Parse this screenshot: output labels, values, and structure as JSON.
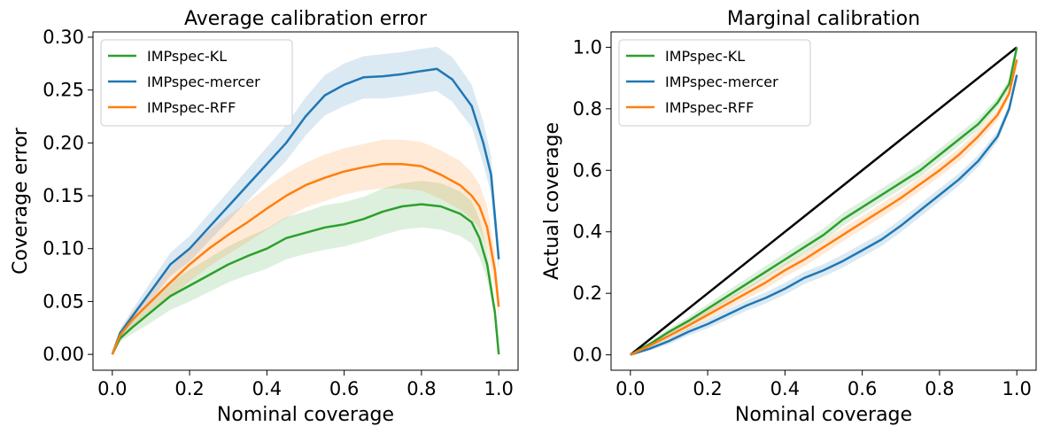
{
  "chart_data": [
    {
      "type": "line",
      "title": "Average calibration error",
      "xlabel": "Nominal coverage",
      "ylabel": "Coverage error",
      "xlim": [
        -0.05,
        1.05
      ],
      "ylim": [
        -0.015,
        0.305
      ],
      "xticks": [
        0.0,
        0.2,
        0.4,
        0.6,
        0.8,
        1.0
      ],
      "xtick_labels": [
        "0.0",
        "0.2",
        "0.4",
        "0.6",
        "0.8",
        "1.0"
      ],
      "yticks": [
        0.0,
        0.05,
        0.1,
        0.15,
        0.2,
        0.25,
        0.3
      ],
      "ytick_labels": [
        "0.00",
        "0.05",
        "0.10",
        "0.15",
        "0.20",
        "0.25",
        "0.30"
      ],
      "legend": "top-left",
      "grid": false,
      "series": [
        {
          "name": "IMPspec-KL",
          "color": "#2ca02c",
          "x": [
            0.0,
            0.02,
            0.05,
            0.1,
            0.15,
            0.2,
            0.25,
            0.3,
            0.35,
            0.4,
            0.45,
            0.5,
            0.55,
            0.6,
            0.65,
            0.7,
            0.75,
            0.8,
            0.85,
            0.9,
            0.93,
            0.95,
            0.97,
            0.99,
            1.0
          ],
          "y": [
            0.0,
            0.015,
            0.025,
            0.04,
            0.055,
            0.065,
            0.075,
            0.085,
            0.093,
            0.1,
            0.11,
            0.115,
            0.12,
            0.123,
            0.128,
            0.135,
            0.14,
            0.142,
            0.14,
            0.133,
            0.125,
            0.11,
            0.085,
            0.04,
            0.0
          ],
          "band_halfwidth": [
            0.0,
            0.003,
            0.006,
            0.01,
            0.013,
            0.015,
            0.016,
            0.017,
            0.018,
            0.019,
            0.02,
            0.02,
            0.021,
            0.021,
            0.021,
            0.022,
            0.022,
            0.022,
            0.022,
            0.021,
            0.02,
            0.018,
            0.014,
            0.006,
            0.0
          ]
        },
        {
          "name": "IMPspec-mercer",
          "color": "#1f77b4",
          "x": [
            0.0,
            0.02,
            0.05,
            0.1,
            0.15,
            0.2,
            0.25,
            0.3,
            0.35,
            0.4,
            0.45,
            0.5,
            0.55,
            0.6,
            0.65,
            0.7,
            0.75,
            0.8,
            0.84,
            0.88,
            0.9,
            0.93,
            0.96,
            0.98,
            1.0
          ],
          "y": [
            0.0,
            0.02,
            0.035,
            0.06,
            0.085,
            0.1,
            0.12,
            0.14,
            0.16,
            0.18,
            0.2,
            0.225,
            0.245,
            0.255,
            0.262,
            0.263,
            0.265,
            0.268,
            0.27,
            0.26,
            0.25,
            0.235,
            0.2,
            0.17,
            0.09
          ],
          "band_halfwidth": [
            0.0,
            0.004,
            0.006,
            0.009,
            0.011,
            0.012,
            0.013,
            0.014,
            0.015,
            0.016,
            0.017,
            0.018,
            0.019,
            0.02,
            0.02,
            0.021,
            0.021,
            0.021,
            0.021,
            0.021,
            0.021,
            0.02,
            0.02,
            0.018,
            0.012
          ]
        },
        {
          "name": "IMPspec-RFF",
          "color": "#ff7f0e",
          "x": [
            0.0,
            0.02,
            0.05,
            0.1,
            0.15,
            0.2,
            0.25,
            0.3,
            0.35,
            0.4,
            0.45,
            0.5,
            0.55,
            0.6,
            0.65,
            0.7,
            0.75,
            0.8,
            0.85,
            0.9,
            0.93,
            0.95,
            0.97,
            0.99,
            1.0
          ],
          "y": [
            0.0,
            0.018,
            0.032,
            0.05,
            0.068,
            0.085,
            0.1,
            0.113,
            0.125,
            0.138,
            0.15,
            0.16,
            0.167,
            0.173,
            0.177,
            0.18,
            0.18,
            0.178,
            0.17,
            0.16,
            0.15,
            0.14,
            0.12,
            0.08,
            0.045
          ],
          "band_halfwidth": [
            0.0,
            0.004,
            0.007,
            0.011,
            0.014,
            0.016,
            0.017,
            0.018,
            0.019,
            0.02,
            0.021,
            0.021,
            0.022,
            0.022,
            0.022,
            0.023,
            0.023,
            0.023,
            0.023,
            0.023,
            0.022,
            0.021,
            0.02,
            0.016,
            0.012
          ]
        }
      ]
    },
    {
      "type": "line",
      "title": "Marginal calibration",
      "xlabel": "Nominal coverage",
      "ylabel": "Actual coverage",
      "xlim": [
        -0.05,
        1.05
      ],
      "ylim": [
        -0.05,
        1.05
      ],
      "xticks": [
        0.0,
        0.2,
        0.4,
        0.6,
        0.8,
        1.0
      ],
      "xtick_labels": [
        "0.0",
        "0.2",
        "0.4",
        "0.6",
        "0.8",
        "1.0"
      ],
      "yticks": [
        0.0,
        0.2,
        0.4,
        0.6,
        0.8,
        1.0
      ],
      "ytick_labels": [
        "0.0",
        "0.2",
        "0.4",
        "0.6",
        "0.8",
        "1.0"
      ],
      "legend": "top-left",
      "grid": false,
      "reference_line": {
        "x": [
          0.0,
          1.0
        ],
        "y": [
          0.0,
          1.0
        ],
        "color": "#000000"
      },
      "series": [
        {
          "name": "IMPspec-KL",
          "color": "#2ca02c",
          "x": [
            0.0,
            0.05,
            0.1,
            0.15,
            0.2,
            0.25,
            0.3,
            0.35,
            0.4,
            0.45,
            0.5,
            0.55,
            0.6,
            0.65,
            0.7,
            0.75,
            0.8,
            0.85,
            0.9,
            0.95,
            0.98,
            1.0
          ],
          "y": [
            0.0,
            0.035,
            0.075,
            0.11,
            0.15,
            0.19,
            0.23,
            0.27,
            0.31,
            0.35,
            0.39,
            0.44,
            0.48,
            0.52,
            0.56,
            0.6,
            0.65,
            0.7,
            0.75,
            0.82,
            0.88,
            1.0
          ],
          "band_halfwidth": [
            0.0,
            0.006,
            0.01,
            0.013,
            0.015,
            0.017,
            0.018,
            0.019,
            0.02,
            0.02,
            0.021,
            0.021,
            0.021,
            0.021,
            0.021,
            0.021,
            0.02,
            0.02,
            0.019,
            0.017,
            0.015,
            0.0
          ]
        },
        {
          "name": "IMPspec-mercer",
          "color": "#1f77b4",
          "x": [
            0.0,
            0.05,
            0.1,
            0.15,
            0.2,
            0.25,
            0.3,
            0.35,
            0.4,
            0.45,
            0.5,
            0.55,
            0.6,
            0.65,
            0.7,
            0.75,
            0.8,
            0.85,
            0.9,
            0.95,
            0.98,
            1.0
          ],
          "y": [
            0.0,
            0.02,
            0.045,
            0.075,
            0.1,
            0.13,
            0.16,
            0.185,
            0.215,
            0.25,
            0.275,
            0.305,
            0.34,
            0.375,
            0.42,
            0.47,
            0.52,
            0.57,
            0.63,
            0.71,
            0.8,
            0.91
          ],
          "band_halfwidth": [
            0.0,
            0.006,
            0.01,
            0.012,
            0.014,
            0.016,
            0.017,
            0.018,
            0.019,
            0.02,
            0.02,
            0.021,
            0.021,
            0.021,
            0.021,
            0.021,
            0.021,
            0.02,
            0.019,
            0.017,
            0.015,
            0.012
          ]
        },
        {
          "name": "IMPspec-RFF",
          "color": "#ff7f0e",
          "x": [
            0.0,
            0.05,
            0.1,
            0.15,
            0.2,
            0.25,
            0.3,
            0.35,
            0.4,
            0.45,
            0.5,
            0.55,
            0.6,
            0.65,
            0.7,
            0.75,
            0.8,
            0.85,
            0.9,
            0.95,
            0.98,
            1.0
          ],
          "y": [
            0.0,
            0.03,
            0.062,
            0.095,
            0.13,
            0.165,
            0.2,
            0.235,
            0.275,
            0.31,
            0.35,
            0.39,
            0.43,
            0.47,
            0.51,
            0.555,
            0.6,
            0.65,
            0.71,
            0.78,
            0.85,
            0.96
          ],
          "band_halfwidth": [
            0.0,
            0.007,
            0.011,
            0.014,
            0.016,
            0.018,
            0.019,
            0.02,
            0.021,
            0.022,
            0.022,
            0.022,
            0.022,
            0.022,
            0.022,
            0.022,
            0.021,
            0.021,
            0.02,
            0.018,
            0.016,
            0.013
          ]
        }
      ]
    }
  ]
}
